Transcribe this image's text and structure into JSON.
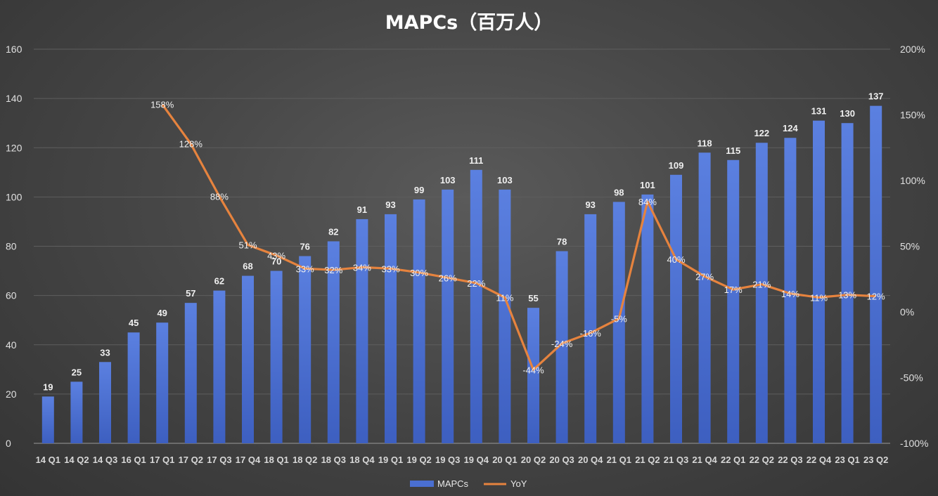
{
  "chart_data": {
    "type": "bar",
    "title": "MAPCs（百万人）",
    "categories": [
      "14 Q1",
      "14 Q2",
      "14 Q3",
      "16 Q1",
      "17 Q1",
      "17 Q2",
      "17 Q3",
      "17 Q4",
      "18 Q1",
      "18 Q2",
      "18 Q3",
      "18 Q4",
      "19 Q1",
      "19 Q2",
      "19 Q3",
      "19 Q4",
      "20 Q1",
      "20 Q2",
      "20 Q3",
      "20 Q4",
      "21 Q1",
      "21 Q2",
      "21 Q3",
      "21 Q4",
      "22 Q1",
      "22 Q2",
      "22 Q3",
      "22 Q4",
      "23 Q1",
      "23 Q2"
    ],
    "series": [
      {
        "name": "MAPCs",
        "type": "bar",
        "axis": "left",
        "color": "#4a6fd1",
        "values": [
          19,
          25,
          33,
          45,
          49,
          57,
          62,
          68,
          70,
          76,
          82,
          91,
          93,
          99,
          103,
          111,
          103,
          55,
          78,
          93,
          98,
          101,
          109,
          118,
          115,
          122,
          124,
          131,
          130,
          137
        ]
      },
      {
        "name": "YoY",
        "type": "line",
        "axis": "right",
        "color": "#e6833e",
        "values": [
          null,
          null,
          null,
          null,
          158,
          128,
          88,
          51,
          43,
          33,
          32,
          34,
          33,
          30,
          26,
          22,
          11,
          -44,
          -24,
          -16,
          -5,
          84,
          40,
          27,
          17,
          21,
          14,
          11,
          13,
          12
        ]
      }
    ],
    "ylim_left": [
      0,
      160
    ],
    "yticks_left": [
      "0",
      "20",
      "40",
      "60",
      "80",
      "100",
      "120",
      "140",
      "160"
    ],
    "ylim_right": [
      -100,
      200
    ],
    "yticks_right": [
      "-100%",
      "-50%",
      "0%",
      "50%",
      "100%",
      "150%",
      "200%"
    ],
    "grid": true,
    "legend": "bottom"
  }
}
